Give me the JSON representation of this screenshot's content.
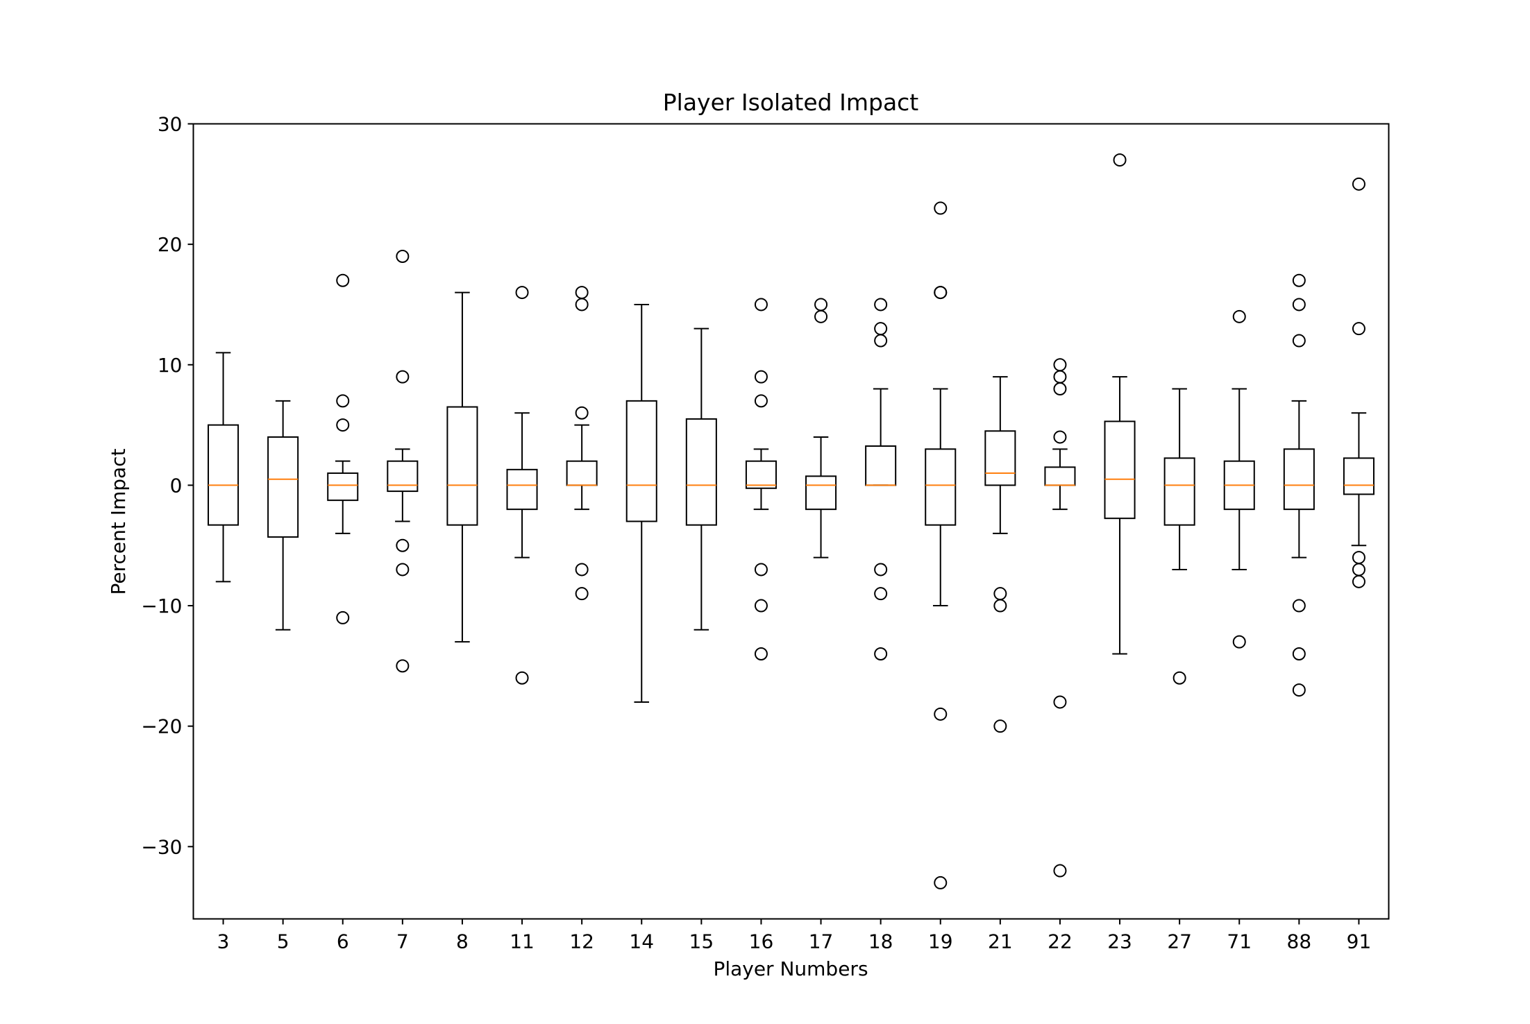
{
  "chart_data": {
    "type": "box",
    "title": "Player Isolated Impact",
    "xlabel": "Player Numbers",
    "ylabel": "Percent Impact",
    "ylim": [
      -36,
      30
    ],
    "yticks": [
      -30,
      -20,
      -10,
      0,
      10,
      20,
      30
    ],
    "ytick_labels": [
      "−30",
      "−20",
      "−10",
      "0",
      "10",
      "20",
      "30"
    ],
    "grid": false,
    "colors": {
      "box": "#000000",
      "median": "#ff7f0e",
      "flier": "#000000"
    },
    "categories": [
      "3",
      "5",
      "6",
      "7",
      "8",
      "11",
      "12",
      "14",
      "15",
      "16",
      "17",
      "18",
      "19",
      "21",
      "22",
      "23",
      "27",
      "71",
      "88",
      "91"
    ],
    "boxes": [
      {
        "player": "3",
        "whisker_low": -8,
        "q1": -3.3,
        "median": 0,
        "q3": 5,
        "whisker_high": 11,
        "fliers": []
      },
      {
        "player": "5",
        "whisker_low": -12,
        "q1": -4.3,
        "median": 0.5,
        "q3": 4,
        "whisker_high": 7,
        "fliers": []
      },
      {
        "player": "6",
        "whisker_low": -4,
        "q1": -1.25,
        "median": 0,
        "q3": 1,
        "whisker_high": 2,
        "fliers": [
          17,
          7,
          5,
          -11
        ]
      },
      {
        "player": "7",
        "whisker_low": -3,
        "q1": -0.5,
        "median": 0,
        "q3": 2,
        "whisker_high": 3,
        "fliers": [
          19,
          9,
          -5,
          -7,
          -15
        ]
      },
      {
        "player": "8",
        "whisker_low": -13,
        "q1": -3.3,
        "median": 0,
        "q3": 6.5,
        "whisker_high": 16,
        "fliers": []
      },
      {
        "player": "11",
        "whisker_low": -6,
        "q1": -2,
        "median": 0,
        "q3": 1.3,
        "whisker_high": 6,
        "fliers": [
          16,
          -16
        ]
      },
      {
        "player": "12",
        "whisker_low": -2,
        "q1": 0,
        "median": 0,
        "q3": 2,
        "whisker_high": 5,
        "fliers": [
          16,
          15,
          6,
          -7,
          -9
        ]
      },
      {
        "player": "14",
        "whisker_low": -18,
        "q1": -3,
        "median": 0,
        "q3": 7,
        "whisker_high": 15,
        "fliers": []
      },
      {
        "player": "15",
        "whisker_low": -12,
        "q1": -3.3,
        "median": 0,
        "q3": 5.5,
        "whisker_high": 13,
        "fliers": []
      },
      {
        "player": "16",
        "whisker_low": -2,
        "q1": -0.25,
        "median": 0,
        "q3": 2,
        "whisker_high": 3,
        "fliers": [
          15,
          9,
          7,
          -7,
          -10,
          -14
        ]
      },
      {
        "player": "17",
        "whisker_low": -6,
        "q1": -2,
        "median": 0,
        "q3": 0.75,
        "whisker_high": 4,
        "fliers": [
          15,
          14
        ]
      },
      {
        "player": "18",
        "whisker_low": 0,
        "q1": 0,
        "median": 0,
        "q3": 3.25,
        "whisker_high": 8,
        "fliers": [
          15,
          13,
          12,
          -7,
          -9,
          -14
        ]
      },
      {
        "player": "19",
        "whisker_low": -10,
        "q1": -3.3,
        "median": 0,
        "q3": 3,
        "whisker_high": 8,
        "fliers": [
          23,
          16,
          16,
          -19,
          -33
        ]
      },
      {
        "player": "21",
        "whisker_low": -4,
        "q1": 0,
        "median": 1,
        "q3": 4.5,
        "whisker_high": 9,
        "fliers": [
          -9,
          -10,
          -20
        ]
      },
      {
        "player": "22",
        "whisker_low": -2,
        "q1": 0,
        "median": 0,
        "q3": 1.5,
        "whisker_high": 3,
        "fliers": [
          10,
          9,
          8,
          4,
          -18,
          -32
        ]
      },
      {
        "player": "23",
        "whisker_low": -14,
        "q1": -2.75,
        "median": 0.5,
        "q3": 5.3,
        "whisker_high": 9,
        "fliers": [
          27
        ]
      },
      {
        "player": "27",
        "whisker_low": -7,
        "q1": -3.3,
        "median": 0,
        "q3": 2.25,
        "whisker_high": 8,
        "fliers": [
          -16
        ]
      },
      {
        "player": "71",
        "whisker_low": -7,
        "q1": -2,
        "median": 0,
        "q3": 2,
        "whisker_high": 8,
        "fliers": [
          14,
          -13
        ]
      },
      {
        "player": "88",
        "whisker_low": -6,
        "q1": -2,
        "median": 0,
        "q3": 3,
        "whisker_high": 7,
        "fliers": [
          17,
          15,
          12,
          -10,
          -14,
          -17
        ]
      },
      {
        "player": "91",
        "whisker_low": -5,
        "q1": -0.75,
        "median": 0,
        "q3": 2.25,
        "whisker_high": 6,
        "fliers": [
          25,
          13,
          -6,
          -7,
          -8
        ]
      }
    ]
  }
}
